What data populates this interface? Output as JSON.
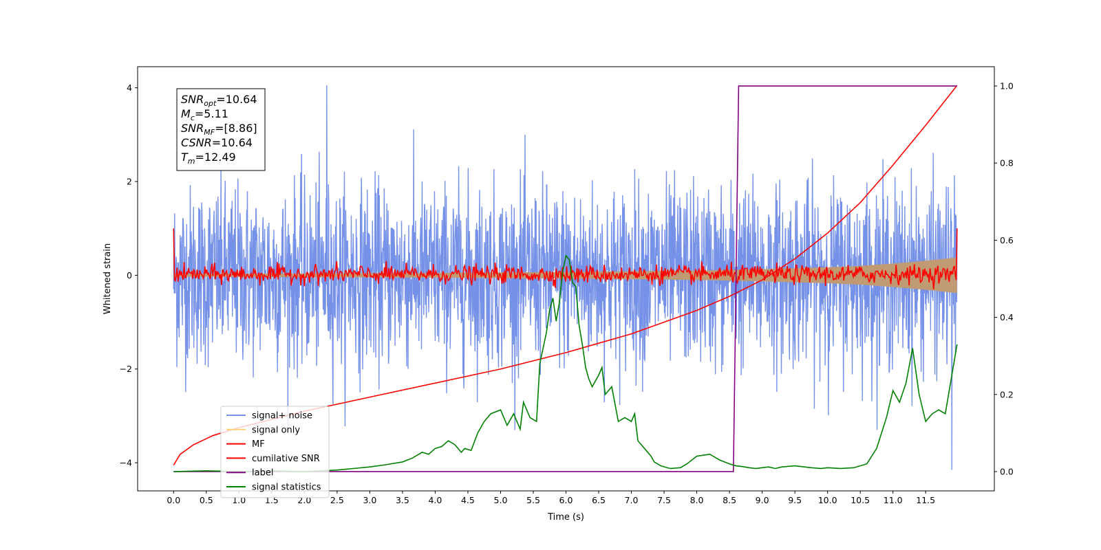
{
  "chart_data": {
    "type": "line",
    "title": "",
    "xlabel": "Time (s)",
    "ylabel_left": "Whitened strain",
    "ylabel_right": "",
    "xlim": [
      -0.55,
      12.55
    ],
    "ylim_left": [
      -4.6,
      4.45
    ],
    "ylim_right": [
      -0.05,
      1.05
    ],
    "x_ticks": [
      0.0,
      0.5,
      1.0,
      1.5,
      2.0,
      2.5,
      3.0,
      3.5,
      4.0,
      4.5,
      5.0,
      5.5,
      6.0,
      6.5,
      7.0,
      7.5,
      8.0,
      8.5,
      9.0,
      9.5,
      10.0,
      10.5,
      11.0,
      11.5
    ],
    "x_tick_labels": [
      "0.0",
      "0.5",
      "1.0",
      "1.5",
      "2.0",
      "2.5",
      "3.0",
      "3.5",
      "4.0",
      "4.5",
      "5.0",
      "5.5",
      "6.0",
      "6.5",
      "7.0",
      "7.5",
      "8.0",
      "8.5",
      "9.0",
      "9.5",
      "10.0",
      "10.5",
      "11.0",
      "11.5"
    ],
    "y_ticks_left": [
      -4,
      -2,
      0,
      2,
      4
    ],
    "y_tick_labels_left": [
      "−4",
      "−2",
      "0",
      "2",
      "4"
    ],
    "y_ticks_right": [
      0.0,
      0.2,
      0.4,
      0.6,
      0.8,
      1.0
    ],
    "y_tick_labels_right": [
      "0.0",
      "0.2",
      "0.4",
      "0.6",
      "0.8",
      "1.0"
    ],
    "grid": false,
    "legend_position": "bottom-left",
    "info_box": {
      "position": "top-left",
      "lines": [
        {
          "base": "SNR",
          "sub": "opt",
          "rest": "=10.64"
        },
        {
          "base": "M",
          "sub": "c",
          "rest": "=5.11"
        },
        {
          "base": "SNR",
          "sub": "MF",
          "rest": "=[8.86]"
        },
        {
          "base": "CSNR",
          "sub": "",
          "rest": "=10.64"
        },
        {
          "base": "T",
          "sub": "m",
          "rest": "=12.49"
        }
      ]
    },
    "series": [
      {
        "name": "signal+ noise",
        "color": "#7692e8",
        "axis": "left",
        "kind": "noise_band",
        "t_range": [
          0.0,
          11.98
        ],
        "typical_range": [
          -2.0,
          2.0
        ],
        "peak_max": 4.05,
        "peak_max_t": 2.34,
        "peak_min": -4.15,
        "peak_min_t": 11.9
      },
      {
        "name": "signal only",
        "color": "#ffd27a",
        "fill_color": "#c09a72",
        "axis": "left",
        "kind": "chirp_envelope",
        "envelope_t": [
          0.0,
          2.0,
          4.0,
          6.0,
          8.0,
          9.0,
          10.0,
          10.5,
          11.0,
          11.5,
          11.98
        ],
        "envelope_amp": [
          0.03,
          0.04,
          0.05,
          0.07,
          0.1,
          0.13,
          0.17,
          0.2,
          0.25,
          0.31,
          0.38
        ]
      },
      {
        "name": "MF",
        "color": "#ff0000",
        "axis": "left",
        "kind": "noisy_line",
        "t_range": [
          0.0,
          11.98
        ],
        "start_value": 1.0,
        "end_value": 1.0,
        "amplitude": 0.12
      },
      {
        "name": "cumilative SNR",
        "color": "#ff0000",
        "axis": "left",
        "x": [
          0.0,
          0.1,
          0.3,
          0.6,
          1.0,
          2.0,
          3.0,
          4.0,
          5.0,
          6.0,
          7.0,
          8.0,
          8.5,
          9.0,
          9.5,
          10.0,
          10.5,
          11.0,
          11.5,
          11.98
        ],
        "y": [
          -4.05,
          -3.82,
          -3.62,
          -3.42,
          -3.25,
          -2.9,
          -2.6,
          -2.3,
          -2.0,
          -1.65,
          -1.25,
          -0.75,
          -0.45,
          -0.1,
          0.35,
          0.9,
          1.55,
          2.35,
          3.2,
          4.05
        ]
      },
      {
        "name": "label",
        "color": "#800080",
        "axis": "right",
        "x": [
          0.0,
          8.56,
          8.64,
          11.98
        ],
        "y": [
          0.0,
          0.0,
          1.0,
          1.0
        ]
      },
      {
        "name": "signal statistics",
        "color": "#008000",
        "axis": "right",
        "x": [
          0.0,
          0.5,
          1.0,
          1.5,
          2.0,
          2.5,
          3.0,
          3.25,
          3.5,
          3.65,
          3.8,
          3.9,
          4.0,
          4.1,
          4.2,
          4.3,
          4.4,
          4.45,
          4.55,
          4.65,
          4.75,
          4.85,
          5.0,
          5.1,
          5.2,
          5.3,
          5.35,
          5.45,
          5.55,
          5.6,
          5.7,
          5.75,
          5.8,
          5.85,
          5.9,
          5.95,
          6.0,
          6.05,
          6.1,
          6.15,
          6.2,
          6.25,
          6.3,
          6.35,
          6.4,
          6.5,
          6.55,
          6.6,
          6.7,
          6.8,
          6.9,
          7.0,
          7.05,
          7.1,
          7.2,
          7.3,
          7.35,
          7.45,
          7.55,
          7.6,
          7.75,
          7.85,
          8.0,
          8.2,
          8.35,
          8.5,
          8.6,
          8.7,
          8.8,
          8.9,
          9.0,
          9.1,
          9.2,
          9.3,
          9.5,
          9.75,
          9.9,
          10.0,
          10.2,
          10.4,
          10.6,
          10.75,
          10.9,
          11.0,
          11.1,
          11.2,
          11.3,
          11.4,
          11.5,
          11.6,
          11.7,
          11.8,
          11.9,
          11.98
        ],
        "y": [
          0.0,
          0.002,
          0.0,
          0.002,
          0.0,
          0.004,
          0.012,
          0.018,
          0.025,
          0.035,
          0.05,
          0.045,
          0.06,
          0.065,
          0.08,
          0.07,
          0.05,
          0.06,
          0.055,
          0.1,
          0.13,
          0.15,
          0.16,
          0.12,
          0.15,
          0.11,
          0.18,
          0.14,
          0.13,
          0.28,
          0.36,
          0.42,
          0.45,
          0.39,
          0.44,
          0.52,
          0.56,
          0.55,
          0.49,
          0.48,
          0.38,
          0.33,
          0.27,
          0.24,
          0.22,
          0.25,
          0.27,
          0.2,
          0.22,
          0.13,
          0.14,
          0.13,
          0.15,
          0.08,
          0.06,
          0.04,
          0.025,
          0.015,
          0.01,
          0.008,
          0.01,
          0.02,
          0.04,
          0.045,
          0.03,
          0.02,
          0.015,
          0.013,
          0.01,
          0.008,
          0.01,
          0.012,
          0.008,
          0.012,
          0.015,
          0.01,
          0.008,
          0.01,
          0.008,
          0.01,
          0.02,
          0.06,
          0.14,
          0.21,
          0.18,
          0.23,
          0.32,
          0.2,
          0.13,
          0.15,
          0.16,
          0.15,
          0.25,
          0.33
        ]
      }
    ]
  }
}
